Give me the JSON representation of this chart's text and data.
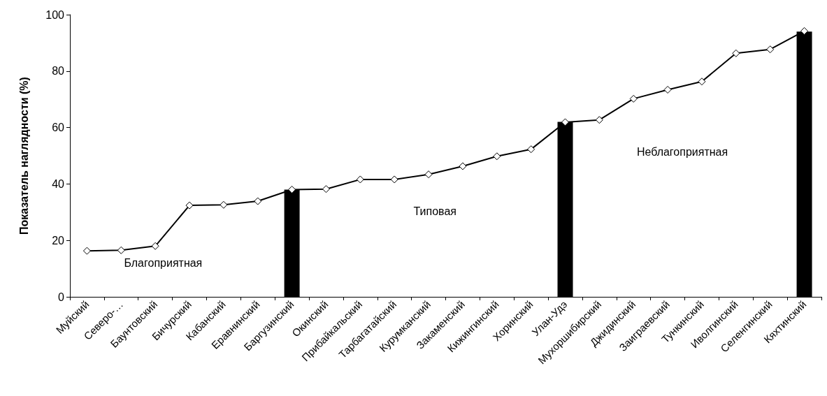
{
  "chart_data": {
    "type": "line",
    "ylabel": "Показатель наглядности (%)",
    "categories": [
      "Муйский",
      "Северо-…",
      "Баунтовский",
      "Бичурский",
      "Кабанский",
      "Еравнинский",
      "Баргузинский",
      "Окинский",
      "Прибайкальский",
      "Тарбагатайский",
      "Курумканский",
      "Закаменский",
      "Кижингинский",
      "Хоринский",
      "Улан-Удэ",
      "Мухоршибирский",
      "Джидинский",
      "Заиграевский",
      "Тункинский",
      "Иволгинский",
      "Селенгинский",
      "Кяхтинский"
    ],
    "series": [
      {
        "type": "bar",
        "color": "#000000",
        "values": [
          null,
          null,
          null,
          null,
          null,
          null,
          38,
          null,
          null,
          null,
          null,
          null,
          null,
          null,
          62,
          null,
          null,
          null,
          null,
          null,
          null,
          94
        ]
      },
      {
        "color": "#000000",
        "marker": "diamond",
        "values": [
          16.3,
          16.5,
          18,
          32.4,
          32.6,
          33.9,
          38,
          38.2,
          41.6,
          41.6,
          43.4,
          46.3,
          49.8,
          52.3,
          61.9,
          62.7,
          70.2,
          73.4,
          76.3,
          86.3,
          87.7,
          94.2
        ]
      }
    ],
    "annotations": [
      "Благоприятная",
      "Типовая",
      "Неблагоприятная"
    ],
    "ylim": [
      0,
      100
    ],
    "yticks": [
      0,
      20,
      40,
      60,
      80,
      100
    ],
    "grid": false
  }
}
